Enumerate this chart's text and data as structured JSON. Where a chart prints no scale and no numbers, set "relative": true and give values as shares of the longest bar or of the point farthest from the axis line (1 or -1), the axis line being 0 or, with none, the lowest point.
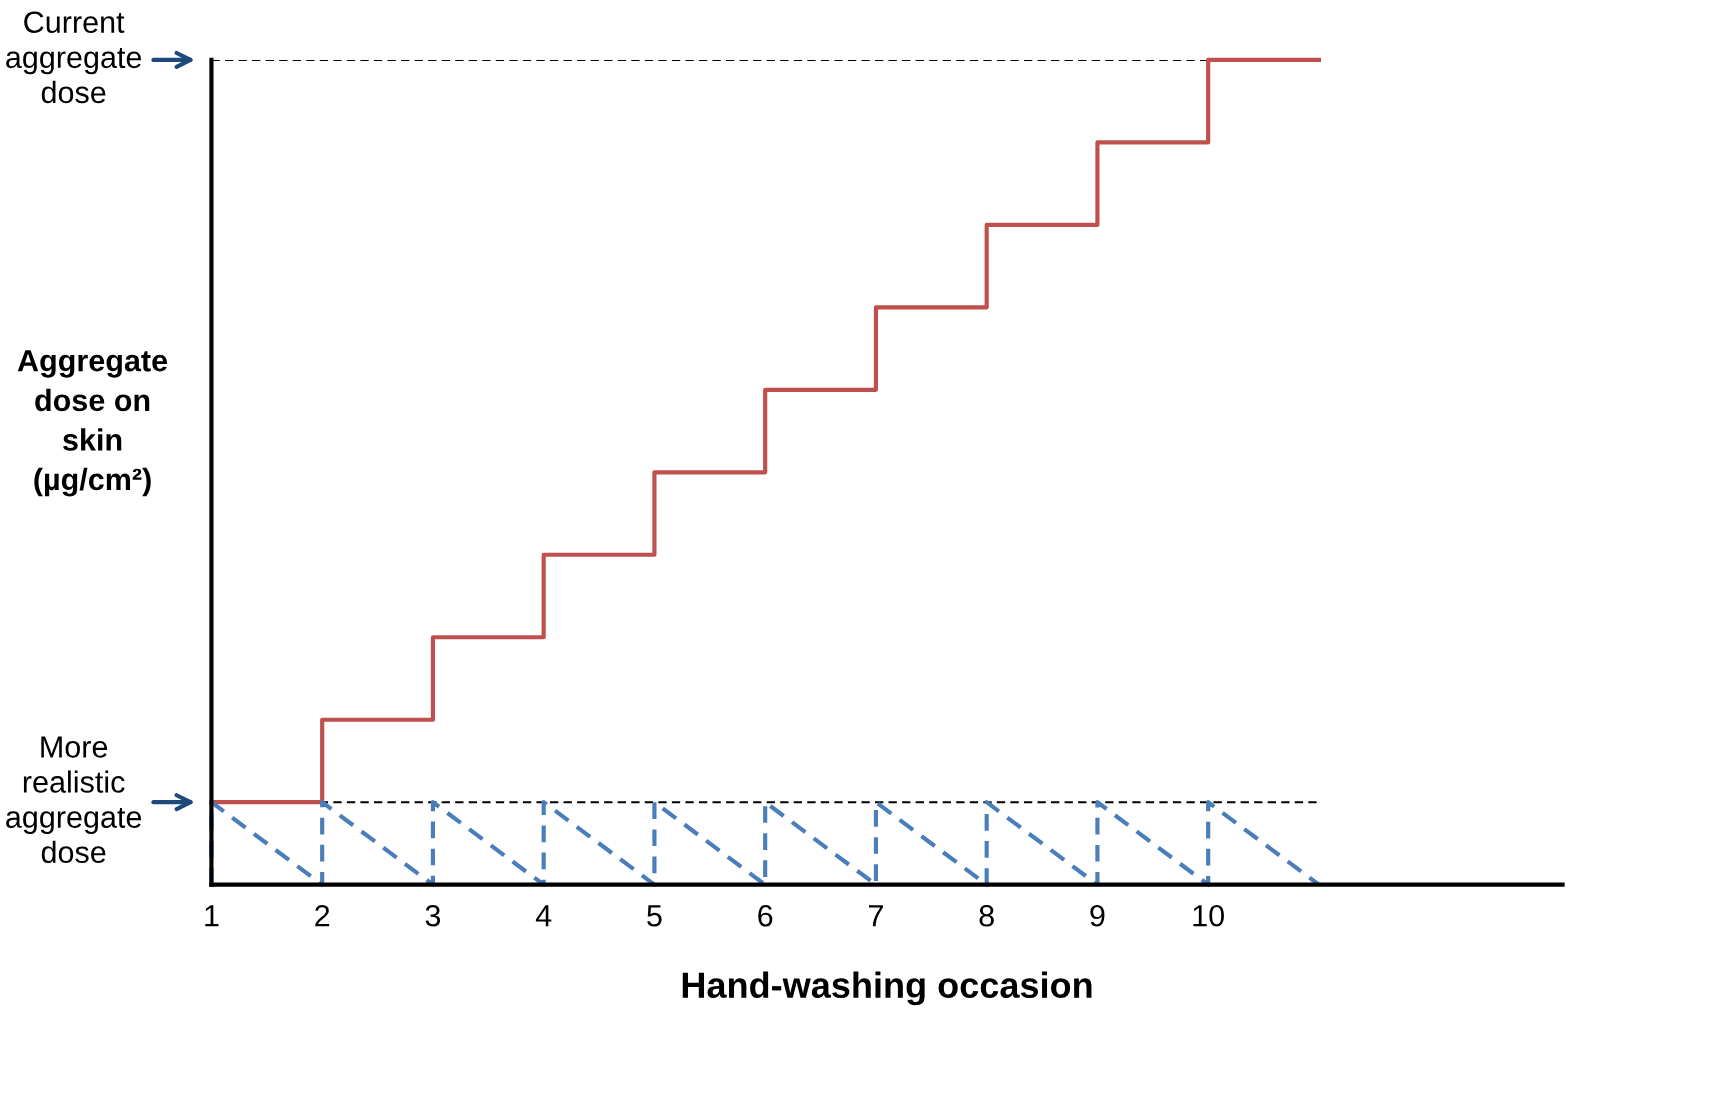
{
  "chart_data": {
    "type": "line",
    "relative": true,
    "xlabel": "Hand-washing occasion",
    "ylabel": "Aggregate dose on skin (µg/cm²)",
    "xlim": [
      1,
      13.2
    ],
    "xticks": [
      1,
      2,
      3,
      4,
      5,
      6,
      7,
      8,
      9,
      10
    ],
    "grid": false,
    "tick_labels": "x",
    "series": [
      {
        "type": "step",
        "color": "#c0504d",
        "line_style": "solid",
        "x": [
          1,
          2,
          3,
          4,
          5,
          6,
          7,
          8,
          9,
          10,
          11
        ],
        "values": [
          0.1,
          0.2,
          0.3,
          0.4,
          0.5,
          0.6,
          0.7,
          0.8,
          0.9,
          1.0,
          1.0
        ]
      },
      {
        "color": "#4a7ebb",
        "line_style": "dashed",
        "x": [
          1,
          1,
          2,
          2,
          3,
          3,
          4,
          4,
          5,
          5,
          6,
          6,
          7,
          7,
          8,
          8,
          9,
          9,
          10,
          10,
          11
        ],
        "values": [
          0,
          0.1,
          0,
          0.1,
          0,
          0.1,
          0,
          0.1,
          0,
          0.1,
          0,
          0.1,
          0,
          0.1,
          0,
          0.1,
          0,
          0.1,
          0,
          0.1,
          0
        ]
      }
    ],
    "ref_lines": [
      {
        "axis": "y",
        "value": 1.0,
        "label": "Current aggregate dose",
        "color": "#000000",
        "line_style": "dashed"
      },
      {
        "axis": "y",
        "value": 0.1,
        "label": "More realistic aggregate dose",
        "color": "#000000",
        "line_style": "dashed"
      }
    ]
  }
}
